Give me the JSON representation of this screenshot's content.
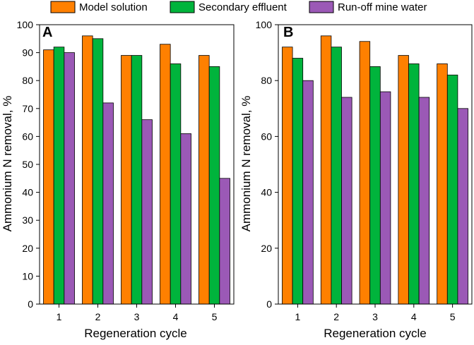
{
  "legend": {
    "items": [
      {
        "label": "Model solution",
        "color": "#ff8000"
      },
      {
        "label": "Secondary effluent",
        "color": "#00b43c"
      },
      {
        "label": "Run-off mine water",
        "color": "#9b59b6"
      }
    ]
  },
  "chart_data": [
    {
      "type": "bar",
      "panel_label": "A",
      "categories": [
        "1",
        "2",
        "3",
        "4",
        "5"
      ],
      "series": [
        {
          "name": "Model solution",
          "values": [
            91,
            96,
            89,
            93,
            89
          ]
        },
        {
          "name": "Secondary effluent",
          "values": [
            92,
            95,
            89,
            86,
            85
          ]
        },
        {
          "name": "Run-off mine water",
          "values": [
            90,
            72,
            66,
            61,
            45
          ]
        }
      ],
      "xlabel": "Regeneration cycle",
      "ylabel": "Ammonium N removal, %",
      "ylim": [
        0,
        100
      ],
      "yticks": [
        0,
        10,
        20,
        30,
        40,
        50,
        60,
        70,
        80,
        90,
        100
      ]
    },
    {
      "type": "bar",
      "panel_label": "B",
      "categories": [
        "1",
        "2",
        "3",
        "4",
        "5"
      ],
      "series": [
        {
          "name": "Model solution",
          "values": [
            92,
            96,
            94,
            89,
            86
          ]
        },
        {
          "name": "Secondary effluent",
          "values": [
            88,
            92,
            85,
            86,
            82
          ]
        },
        {
          "name": "Run-off mine water",
          "values": [
            80,
            74,
            76,
            74,
            70
          ]
        }
      ],
      "xlabel": "Regeneration cycle",
      "ylabel": "Ammonium N removal, %",
      "ylim": [
        0,
        100
      ],
      "yticks": [
        0,
        20,
        40,
        60,
        80,
        100
      ]
    }
  ]
}
